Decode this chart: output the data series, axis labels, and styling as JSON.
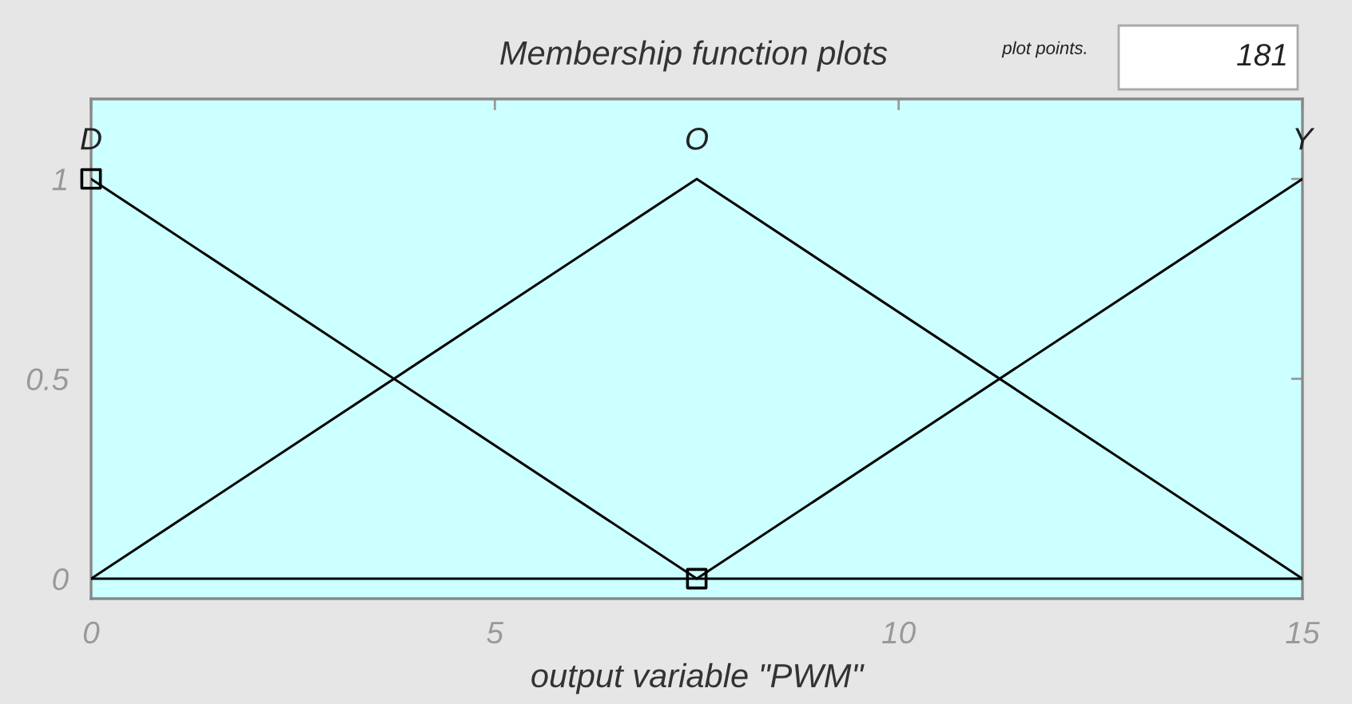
{
  "chart_data": {
    "type": "line",
    "title": "Membership function plots",
    "xlabel": "output variable \"PWM\"",
    "annotations": [
      "plot points.",
      "181"
    ],
    "xlim": [
      0,
      15
    ],
    "ylim": [
      -0.05,
      1.2
    ],
    "xticks": [
      0,
      5,
      10,
      15
    ],
    "yticks": [
      0,
      0.5,
      1
    ],
    "grid": false,
    "legend": false,
    "series": [
      {
        "name": "D",
        "color": "#000000",
        "x": [
          0,
          7.5,
          15
        ],
        "values": [
          1,
          0,
          0
        ]
      },
      {
        "name": "O",
        "color": "#000000",
        "x": [
          0,
          7.5,
          15
        ],
        "values": [
          0,
          1,
          0
        ]
      },
      {
        "name": "Y",
        "color": "#000000",
        "x": [
          0,
          7.5,
          15
        ],
        "values": [
          0,
          0,
          1
        ]
      },
      {
        "type": "scatter",
        "color": "#000000",
        "marker": "square",
        "x": [
          0,
          7.5
        ],
        "values": [
          1,
          0
        ]
      }
    ]
  }
}
